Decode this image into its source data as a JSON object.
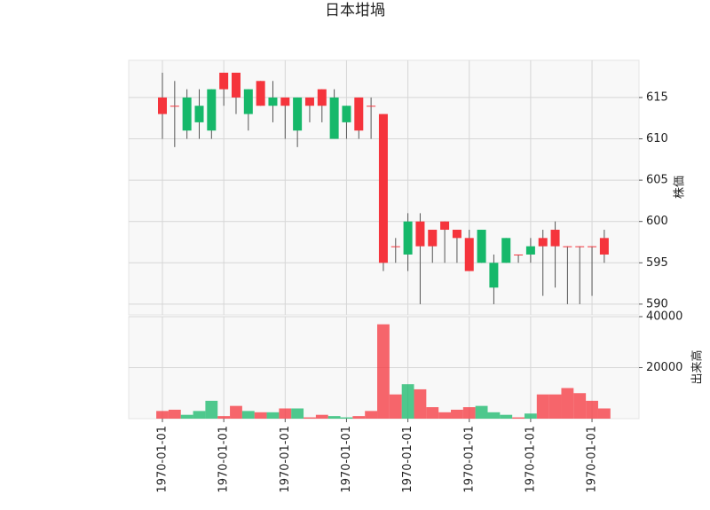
{
  "chart_data": {
    "type": "candlestick",
    "title": "日本坩堝",
    "categories": [
      "1970-01-01",
      null,
      null,
      null,
      null,
      "1970-01-01",
      null,
      null,
      null,
      null,
      "1970-01-01",
      null,
      null,
      null,
      null,
      "1970-01-01",
      null,
      null,
      null,
      null,
      "1970-01-01",
      null,
      null,
      null,
      null,
      "1970-01-01",
      null,
      null,
      null,
      null,
      "1970-01-01",
      null,
      null,
      null,
      null,
      "1970-01-01",
      null
    ],
    "open": [
      615,
      614,
      611,
      612,
      611,
      618,
      618,
      613,
      617,
      614,
      615,
      611,
      615,
      616,
      610,
      612,
      615,
      614,
      613,
      597,
      596,
      600,
      599,
      600,
      599,
      598,
      595,
      592,
      595,
      596,
      596,
      598,
      599,
      597,
      597,
      597,
      598
    ],
    "high": [
      618,
      617,
      616,
      616,
      616,
      618,
      618,
      616,
      617,
      617,
      615,
      615,
      615,
      616,
      616,
      614,
      615,
      615,
      613,
      598,
      601,
      601,
      599,
      600,
      599,
      599,
      599,
      596,
      598,
      596,
      598,
      599,
      600,
      597,
      597,
      597,
      599
    ],
    "low": [
      610,
      609,
      610,
      610,
      610,
      614,
      613,
      611,
      614,
      612,
      610,
      609,
      612,
      612,
      610,
      610,
      610,
      610,
      594,
      595,
      594,
      590,
      595,
      595,
      595,
      594,
      595,
      590,
      595,
      595,
      595,
      591,
      592,
      590,
      590,
      591,
      595
    ],
    "close": [
      613,
      614,
      615,
      614,
      616,
      616,
      615,
      616,
      614,
      615,
      614,
      615,
      614,
      614,
      615,
      614,
      611,
      614,
      595,
      597,
      600,
      597,
      597,
      599,
      598,
      594,
      599,
      595,
      598,
      596,
      597,
      597,
      597,
      597,
      597,
      597,
      596
    ],
    "volume": [
      3000,
      3500,
      1500,
      3000,
      7000,
      1000,
      5000,
      3000,
      2500,
      2500,
      4000,
      4000,
      500,
      1500,
      1000,
      500,
      1000,
      3000,
      37000,
      9500,
      13500,
      11500,
      4500,
      2500,
      3500,
      4500,
      5000,
      2500,
      1500,
      500,
      2000,
      9500,
      9500,
      12000,
      10000,
      7000,
      4000
    ],
    "up_color": "#16b86a",
    "down_color": "#f5343c",
    "ylim": [
      588.7,
      619.5
    ],
    "yticks": [
      590,
      595,
      600,
      605,
      610,
      615
    ],
    "ylabel": "株価",
    "volume_ylim": [
      0,
      40000
    ],
    "volume_yticks": [
      20000,
      40000
    ],
    "volume_ylabel": "出来高",
    "grid": true
  }
}
